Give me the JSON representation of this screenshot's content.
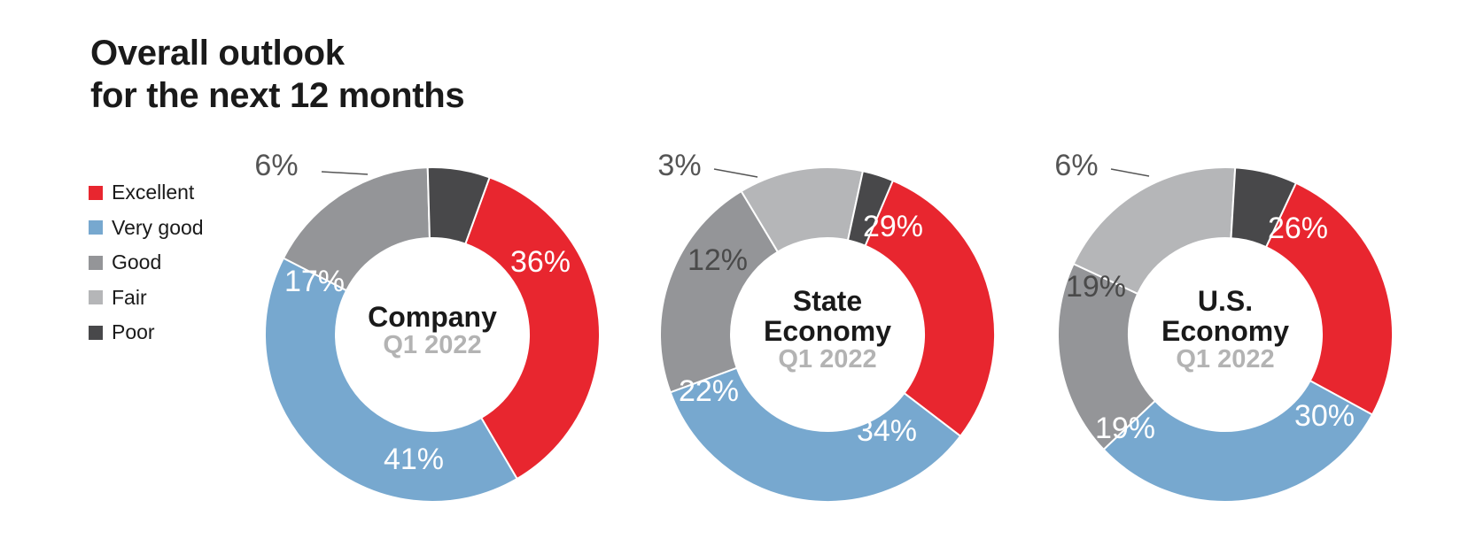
{
  "title": {
    "line1": "Overall outlook",
    "line2": "for the next 12 months"
  },
  "legend": [
    {
      "label": "Excellent",
      "color": "#e8262f"
    },
    {
      "label": "Very good",
      "color": "#77a8cf"
    },
    {
      "label": "Good",
      "color": "#949598"
    },
    {
      "label": "Fair",
      "color": "#b5b6b8"
    },
    {
      "label": "Poor",
      "color": "#48484a"
    }
  ],
  "chart_data": [
    {
      "type": "pie",
      "center_title": [
        "Company"
      ],
      "center_subtitle": "Q1 2022",
      "categories": [
        "Excellent",
        "Very good",
        "Good",
        "Fair",
        "Poor"
      ],
      "values": [
        36,
        41,
        17,
        0,
        6
      ],
      "labels": [
        "36%",
        "41%",
        "17%",
        "",
        "6%"
      ],
      "colors": [
        "#e8262f",
        "#77a8cf",
        "#949598",
        "#b5b6b8",
        "#48484a"
      ]
    },
    {
      "type": "pie",
      "center_title": [
        "State",
        "Economy"
      ],
      "center_subtitle": "Q1 2022",
      "categories": [
        "Excellent",
        "Very good",
        "Good",
        "Fair",
        "Poor"
      ],
      "values": [
        29,
        34,
        22,
        12,
        3
      ],
      "labels": [
        "29%",
        "34%",
        "22%",
        "12%",
        "3%"
      ],
      "colors": [
        "#e8262f",
        "#77a8cf",
        "#949598",
        "#b5b6b8",
        "#48484a"
      ]
    },
    {
      "type": "pie",
      "center_title": [
        "U.S.",
        "Economy"
      ],
      "center_subtitle": "Q1 2022",
      "categories": [
        "Excellent",
        "Very good",
        "Good",
        "Fair",
        "Poor"
      ],
      "values": [
        26,
        30,
        19,
        19,
        6
      ],
      "labels": [
        "26%",
        "30%",
        "19%",
        "19%",
        "6%"
      ],
      "colors": [
        "#e8262f",
        "#77a8cf",
        "#949598",
        "#b5b6b8",
        "#48484a"
      ]
    }
  ]
}
